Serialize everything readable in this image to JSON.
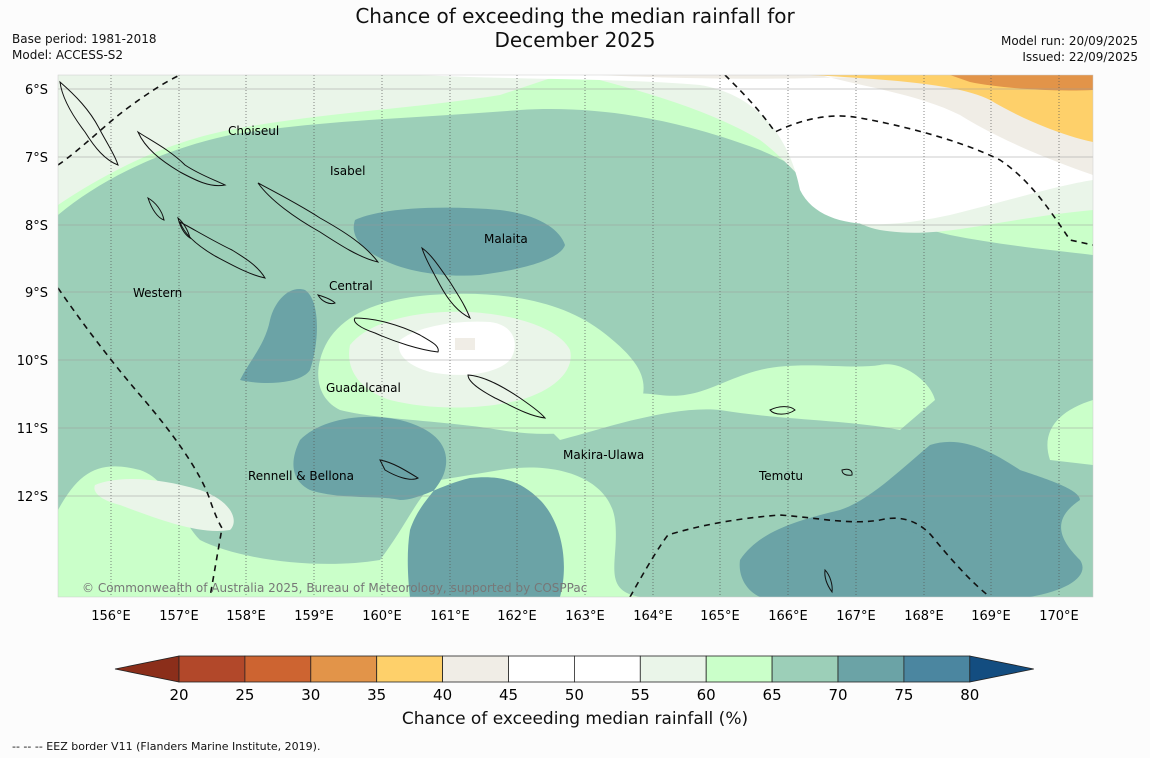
{
  "header": {
    "title_line1": "Chance of exceeding the median rainfall for",
    "title_line2": "December 2025",
    "base_period": "Base period: 1981-2018",
    "model": "Model: ACCESS-S2",
    "model_run": "Model run: 20/09/2025",
    "issued": "Issued: 22/09/2025"
  },
  "map": {
    "lat_labels": [
      "6°S",
      "7°S",
      "8°S",
      "9°S",
      "10°S",
      "11°S",
      "12°S"
    ],
    "lon_labels": [
      "156°E",
      "157°E",
      "158°E",
      "159°E",
      "160°E",
      "161°E",
      "162°E",
      "163°E",
      "164°E",
      "165°E",
      "166°E",
      "167°E",
      "168°E",
      "169°E",
      "170°E"
    ],
    "regions": [
      "Choiseul",
      "Isabel",
      "Malaita",
      "Western",
      "Central",
      "Guadalcanal",
      "Rennell & Bellona",
      "Makira-Ulawa",
      "Temotu"
    ],
    "copyright": "© Commonwealth of Australia 2025, Bureau of Meteorology, supported by COSPPac"
  },
  "colorbar": {
    "ticks": [
      "20",
      "25",
      "30",
      "35",
      "40",
      "45",
      "50",
      "55",
      "60",
      "65",
      "70",
      "75",
      "80"
    ],
    "colors": [
      "#8b2e1a",
      "#b2482a",
      "#cd6431",
      "#e29449",
      "#fed06a",
      "#f0ede6",
      "#ffffff",
      "#ffffff",
      "#eaf5e9",
      "#caffc9",
      "#9ccfb8",
      "#6ba3a6",
      "#4b86a0",
      "#134d80"
    ],
    "label": "Chance of exceeding median rainfall (%)"
  },
  "footer": {
    "eez_note": "--  --  -- EEZ border V11 (Flanders Marine Institute, 2019)."
  }
}
